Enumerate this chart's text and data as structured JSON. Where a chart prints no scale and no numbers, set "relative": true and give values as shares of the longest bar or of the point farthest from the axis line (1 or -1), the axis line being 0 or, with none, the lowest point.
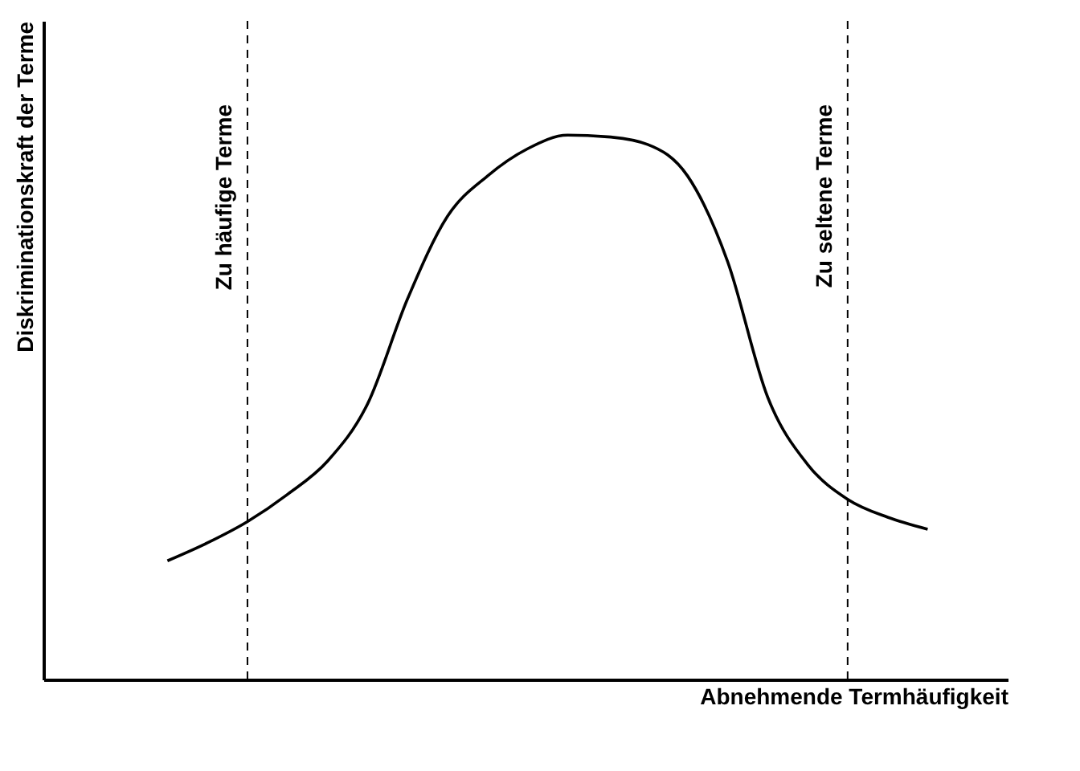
{
  "chart_data": {
    "type": "line",
    "relative": true,
    "xlabel": "Abnehmende Termhäufigkeit",
    "ylabel": "Diskriminationskraft der Terme",
    "categories": [
      null,
      null,
      null,
      null,
      null,
      null,
      null,
      null,
      null,
      null,
      null,
      null,
      null,
      null,
      null,
      null,
      null,
      null,
      null,
      null
    ],
    "series": [
      {
        "color": "#000000",
        "values": [
          0.218,
          0.251,
          0.29,
          0.34,
          0.401,
          0.506,
          0.699,
          0.851,
          0.925,
          0.975,
          1.0,
          0.997,
          0.983,
          0.925,
          0.768,
          0.519,
          0.395,
          0.331,
          0.298,
          0.276
        ]
      }
    ],
    "annotations": [
      "Zu häufige Terme",
      "Zu seltene Terme"
    ],
    "grid": false,
    "marker": "none",
    "line_style": "solid"
  }
}
